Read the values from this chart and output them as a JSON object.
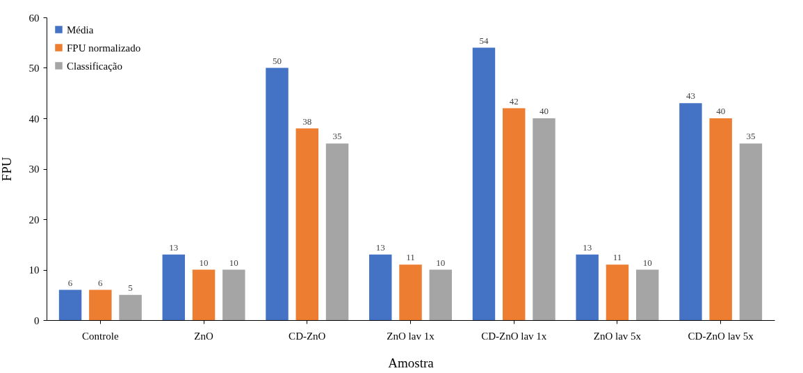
{
  "chart_data": {
    "type": "bar",
    "xlabel": "Amostra",
    "ylabel": "FPU",
    "categories": [
      "Controle",
      "ZnO",
      "CD-ZnO",
      "ZnO lav 1x",
      "CD-ZnO lav 1x",
      "ZnO lav 5x",
      "CD-ZnO lav 5x"
    ],
    "series": [
      {
        "name": "Média",
        "color": "#4472c4",
        "values": [
          6,
          13,
          50,
          13,
          54,
          13,
          43
        ]
      },
      {
        "name": "FPU normalizado",
        "color": "#ed7d31",
        "values": [
          6,
          10,
          38,
          11,
          42,
          11,
          40
        ]
      },
      {
        "name": "Classificação",
        "color": "#a5a5a5",
        "values": [
          5,
          10,
          35,
          10,
          40,
          10,
          35
        ]
      }
    ],
    "ylim": [
      0,
      60
    ],
    "yticks": [
      0,
      10,
      20,
      30,
      40,
      50,
      60
    ],
    "grid": false,
    "legend": "top left",
    "data_labels": true
  }
}
